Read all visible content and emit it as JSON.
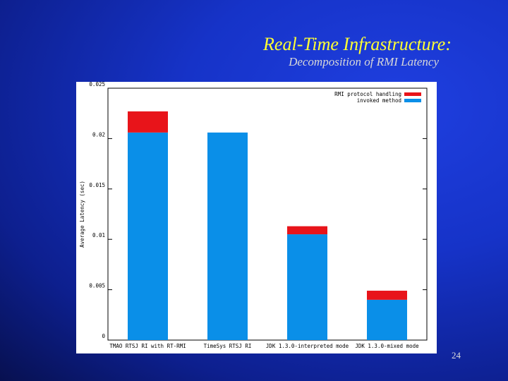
{
  "slide": {
    "title": "Real-Time Infrastructure:",
    "subtitle": "Decomposition of RMI Latency",
    "page_number": "24"
  },
  "chart_data": {
    "type": "bar",
    "stacked": true,
    "ylabel": "Average Latency (sec)",
    "xlabel": "",
    "ylim": [
      0,
      0.025
    ],
    "yticks": [
      0,
      0.005,
      0.01,
      0.015,
      0.02,
      0.025
    ],
    "ytick_labels": [
      "0",
      "0.005",
      "0.01",
      "0.015",
      "0.02",
      "0.025"
    ],
    "categories": [
      "TMAO RTSJ RI with RT-RMI",
      "TimeSys RTSJ RI",
      "JDK 1.3.0-interpreted mode",
      "JDK 1.3.0-mixed mode"
    ],
    "series": [
      {
        "name": "invoked method",
        "color": "#0a8fe8",
        "values": [
          0.0206,
          0.0206,
          0.0105,
          0.004
        ]
      },
      {
        "name": "RMI protocol handling",
        "color": "#e8141a",
        "values": [
          0.0021,
          0.0,
          0.0008,
          0.0009
        ]
      }
    ],
    "legend_position": "top-right",
    "grid": false
  }
}
